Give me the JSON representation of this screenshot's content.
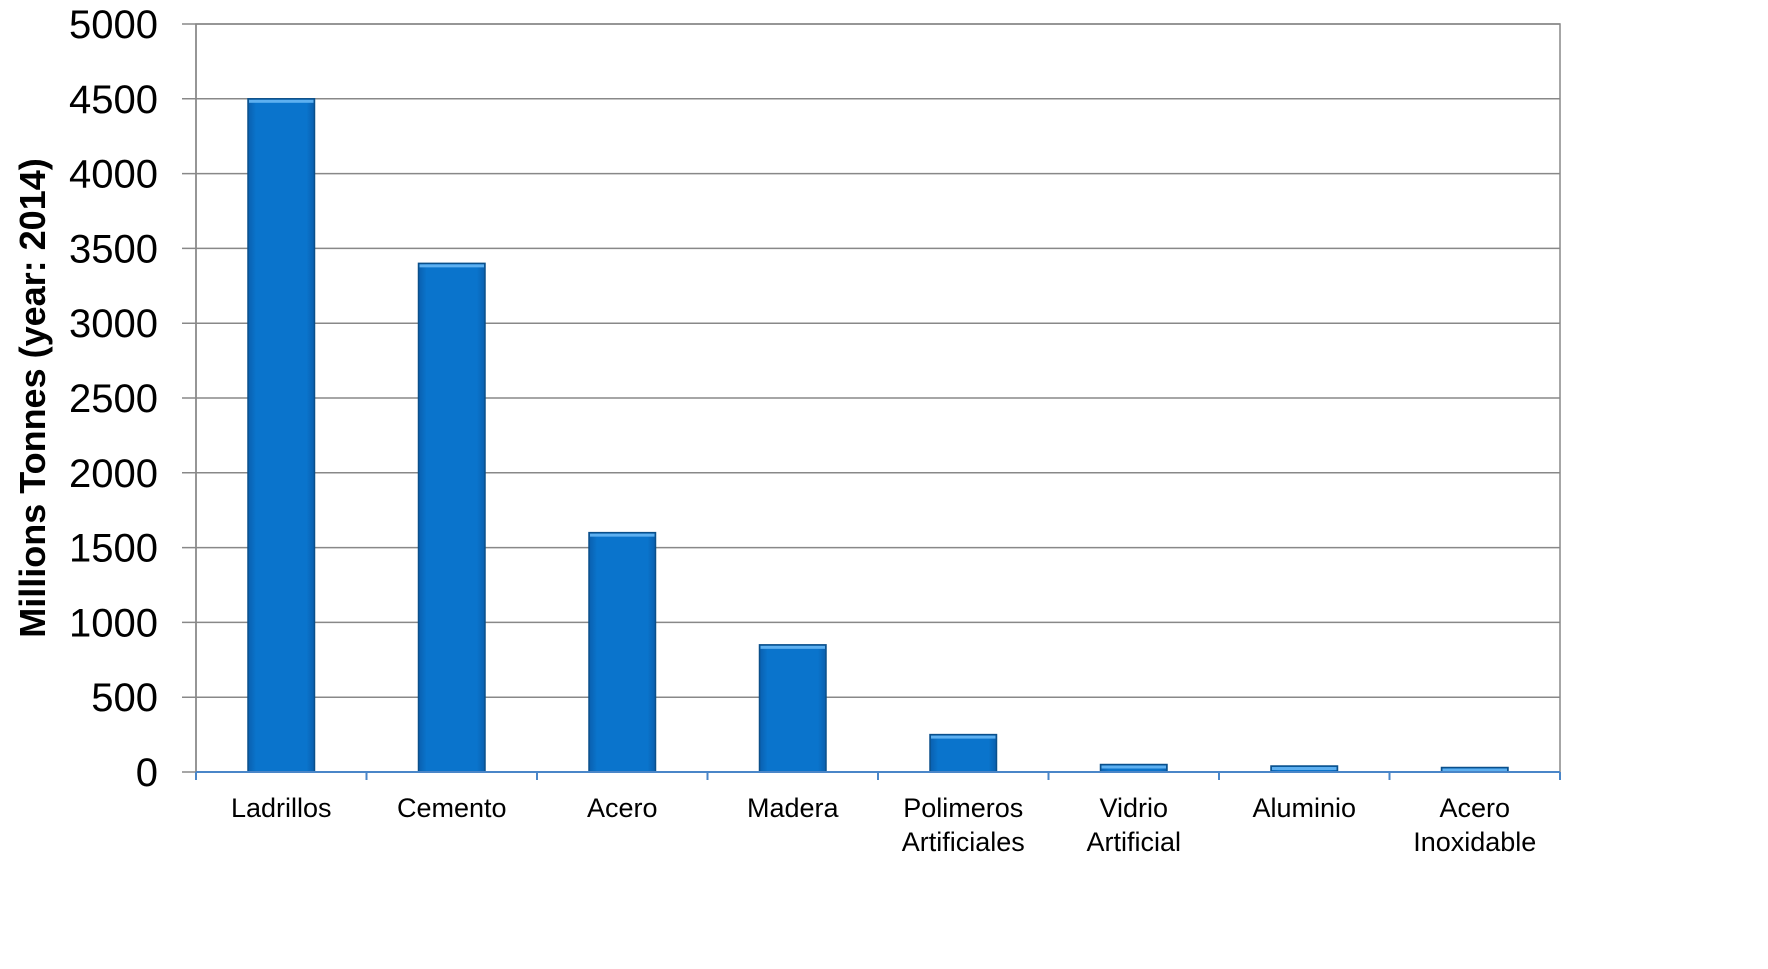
{
  "chart_data": {
    "type": "bar",
    "title": "",
    "xlabel": "",
    "ylabel": "Millions Tonnes (year: 2014)",
    "categories": [
      [
        "Ladrillos"
      ],
      [
        "Cemento"
      ],
      [
        "Acero"
      ],
      [
        "Madera"
      ],
      [
        "Polimeros",
        "Artificiales"
      ],
      [
        "Vidrio",
        "Artificial"
      ],
      [
        "Aluminio"
      ],
      [
        "Acero",
        "Inoxidable"
      ]
    ],
    "values": [
      4500,
      3400,
      1600,
      850,
      250,
      50,
      40,
      30
    ],
    "ylim": [
      0,
      5000
    ],
    "yticks": [
      0,
      500,
      1000,
      1500,
      2000,
      2500,
      3000,
      3500,
      4000,
      4500,
      5000
    ],
    "grid": true,
    "legend": "none",
    "colors": {
      "bar": "#0a74cc",
      "bar_edge": "#0a4f8a",
      "bar_highlight": "#5eb0f0",
      "grid": "#888888",
      "axis": "#4a86c8",
      "frame": "#888888"
    }
  }
}
